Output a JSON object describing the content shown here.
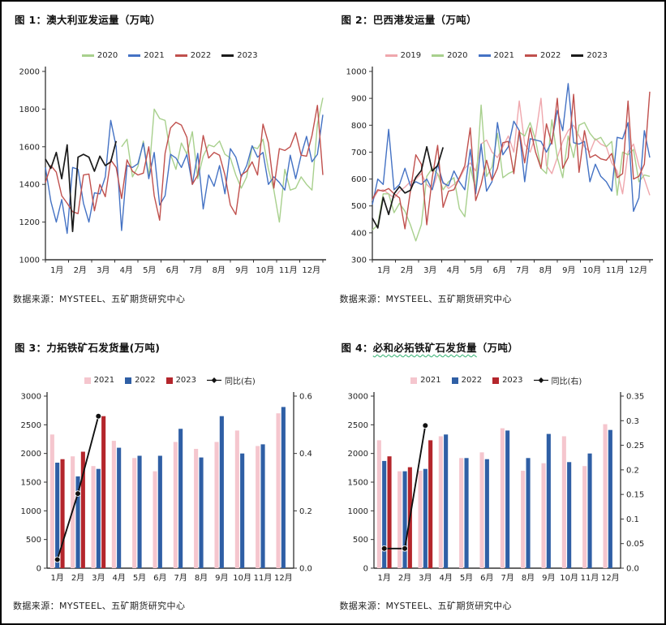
{
  "months": [
    "1月",
    "2月",
    "3月",
    "4月",
    "5月",
    "6月",
    "7月",
    "8月",
    "9月",
    "10月",
    "11月",
    "12月"
  ],
  "chart_data": [
    {
      "id": "fig1",
      "type": "line",
      "title": "图 1：澳大利亚发运量（万吨）",
      "title_prefix": "图 1：澳大利亚发运量（万吨）",
      "title_main": "",
      "title_suffix": "",
      "source": "数据来源：MYSTEEL、五矿期货研究中心",
      "ylabel": "万吨",
      "ylim": [
        1000,
        2000
      ],
      "ytick_labels": [
        "1000",
        "1200",
        "1400",
        "1600",
        "1800",
        "2000"
      ],
      "n_points": 52,
      "grid": false,
      "legend_position": "top",
      "series": [
        {
          "name": "2020",
          "color": "#a8d08d",
          "start": 14,
          "values": [
            1600,
            1640,
            1440,
            1495,
            1630,
            1440,
            1800,
            1750,
            1740,
            1560,
            1480,
            1620,
            1560,
            1680,
            1430,
            1550,
            1610,
            1600,
            1630,
            1560,
            1540,
            1450,
            1380,
            1440,
            1600,
            1590,
            1640,
            1480,
            1370,
            1200,
            1480,
            1370,
            1380,
            1440,
            1400,
            1370,
            1720,
            1860
          ]
        },
        {
          "name": "2021",
          "color": "#4472c4",
          "start": 0,
          "values": [
            1490,
            1310,
            1200,
            1320,
            1140,
            1490,
            1480,
            1300,
            1200,
            1355,
            1350,
            1440,
            1740,
            1600,
            1155,
            1500,
            1490,
            1510,
            1620,
            1430,
            1570,
            1290,
            1340,
            1560,
            1540,
            1490,
            1560,
            1400,
            1565,
            1270,
            1450,
            1390,
            1500,
            1350,
            1590,
            1545,
            1440,
            1500,
            1605,
            1545,
            1570,
            1400,
            1440,
            1410,
            1370,
            1555,
            1430,
            1555,
            1655,
            1520,
            1560,
            1770
          ]
        },
        {
          "name": "2022",
          "color": "#c0504d",
          "start": 0,
          "values": [
            1410,
            1500,
            1465,
            1340,
            1300,
            1255,
            1245,
            1450,
            1455,
            1260,
            1400,
            1335,
            1530,
            1490,
            1325,
            1530,
            1470,
            1450,
            1460,
            1600,
            1340,
            1210,
            1565,
            1700,
            1730,
            1715,
            1650,
            1400,
            1450,
            1660,
            1540,
            1570,
            1555,
            1450,
            1290,
            1240,
            1450,
            1470,
            1520,
            1450,
            1720,
            1620,
            1380,
            1590,
            1580,
            1600,
            1675,
            1555,
            1550,
            1660,
            1820,
            1450
          ]
        },
        {
          "name": "2023",
          "color": "#1a1a1a",
          "start": 0,
          "values": [
            1535,
            1485,
            1570,
            1430,
            1610,
            1150,
            1545,
            1560,
            1545,
            1470,
            1550,
            1500,
            1520,
            1630
          ]
        }
      ]
    },
    {
      "id": "fig2",
      "type": "line",
      "title": "图 2：巴西港发运量（万吨）",
      "title_prefix": "图 2：巴西港发运量（万吨）",
      "title_main": "",
      "title_suffix": "",
      "source": "数据来源：MYSTEEL、五矿期货研究中心",
      "ylabel": "万吨",
      "ylim": [
        300,
        1000
      ],
      "ytick_labels": [
        "300",
        "400",
        "500",
        "600",
        "700",
        "800",
        "900",
        "1000"
      ],
      "n_points": 52,
      "grid": false,
      "legend_position": "top",
      "series": [
        {
          "name": "2019",
          "color": "#efa7ad",
          "start": 0,
          "values": [
            520,
            555,
            560,
            545,
            530,
            555,
            570,
            590,
            600,
            620,
            580,
            560,
            620,
            590,
            565,
            580,
            600,
            640,
            660,
            630,
            730,
            745,
            700,
            680,
            720,
            760,
            700,
            890,
            730,
            700,
            760,
            900,
            650,
            620,
            680,
            740,
            780,
            800,
            760,
            720,
            700,
            750,
            730,
            720,
            660,
            630,
            545,
            700,
            730,
            650,
            600,
            540
          ]
        },
        {
          "name": "2020",
          "color": "#a8d08d",
          "start": 0,
          "values": [
            410,
            430,
            545,
            545,
            475,
            510,
            480,
            430,
            370,
            430,
            610,
            640,
            620,
            560,
            590,
            605,
            490,
            460,
            645,
            560,
            875,
            610,
            645,
            770,
            605,
            620,
            630,
            775,
            760,
            810,
            745,
            640,
            620,
            820,
            680,
            605,
            760,
            680,
            800,
            810,
            770,
            745,
            755,
            720,
            740,
            540,
            700,
            690,
            710,
            590,
            615,
            610
          ]
        },
        {
          "name": "2021",
          "color": "#4472c4",
          "start": 0,
          "values": [
            505,
            600,
            580,
            785,
            560,
            580,
            640,
            575,
            590,
            580,
            600,
            560,
            655,
            585,
            575,
            630,
            590,
            560,
            710,
            545,
            730,
            555,
            590,
            810,
            690,
            720,
            815,
            780,
            590,
            750,
            745,
            740,
            700,
            740,
            855,
            780,
            955,
            735,
            730,
            740,
            590,
            655,
            610,
            590,
            555,
            755,
            750,
            810,
            480,
            530,
            780,
            680
          ]
        },
        {
          "name": "2022",
          "color": "#c0504d",
          "start": 0,
          "values": [
            525,
            560,
            555,
            565,
            545,
            530,
            415,
            555,
            690,
            655,
            430,
            605,
            725,
            495,
            555,
            560,
            605,
            650,
            790,
            520,
            580,
            670,
            595,
            640,
            735,
            740,
            620,
            780,
            660,
            790,
            700,
            640,
            805,
            730,
            900,
            640,
            680,
            915,
            625,
            780,
            680,
            690,
            675,
            670,
            695,
            605,
            620,
            890,
            600,
            610,
            655,
            925
          ]
        },
        {
          "name": "2023",
          "color": "#1a1a1a",
          "start": 0,
          "values": [
            455,
            418,
            532,
            468,
            545,
            572,
            548,
            558,
            606,
            632,
            720,
            630,
            650,
            718
          ]
        }
      ]
    },
    {
      "id": "fig3",
      "type": "bar-line",
      "title": "图 3：力拓铁矿石发货量(万吨)",
      "title_prefix": "图 3：力拓铁矿石发货量(万吨)",
      "title_main": "",
      "title_suffix": "",
      "source": "数据来源：MYSTEEL、五矿期货研究中心",
      "ylim": [
        0,
        3000
      ],
      "ytick_labels": [
        "0",
        "500",
        "1000",
        "1500",
        "2000",
        "2500",
        "3000"
      ],
      "y2lim": [
        0,
        0.6
      ],
      "y2tick_labels": [
        "0.0",
        "0.2",
        "0.4",
        "0.6"
      ],
      "grid": false,
      "legend_position": "top",
      "bar_series": [
        {
          "name": "2021",
          "color": "#f5c6ce",
          "values": [
            2330,
            1950,
            1780,
            2220,
            1920,
            1690,
            2200,
            2080,
            2200,
            2400,
            2130,
            2700
          ]
        },
        {
          "name": "2022",
          "color": "#2f5fa5",
          "values": [
            1840,
            1600,
            1730,
            2100,
            1960,
            1960,
            2430,
            1930,
            2650,
            2000,
            2160,
            2810
          ]
        },
        {
          "name": "2023",
          "color": "#b4262c",
          "values": [
            1900,
            2030,
            2650,
            null,
            null,
            null,
            null,
            null,
            null,
            null,
            null,
            null
          ]
        }
      ],
      "line_series": {
        "name": "同比(右)",
        "color": "#111111",
        "axis": "right",
        "values": [
          0.03,
          0.26,
          0.53,
          null,
          null,
          null,
          null,
          null,
          null,
          null,
          null,
          null
        ]
      }
    },
    {
      "id": "fig4",
      "type": "bar-line",
      "title": "图 4：必和必拓铁矿石发货量（万吨）",
      "title_prefix": "图 4：",
      "title_main": "必和必拓铁矿石发货量",
      "title_suffix": "（万吨）",
      "source": "数据来源：MYSTEEL、五矿期货研究中心",
      "ylim": [
        0,
        3000
      ],
      "ytick_labels": [
        "0",
        "500",
        "1000",
        "1500",
        "2000",
        "2500",
        "3000"
      ],
      "y2lim": [
        0,
        0.35
      ],
      "y2tick_labels": [
        "0.0",
        "0.05",
        "0.1",
        "0.15",
        "0.2",
        "0.25",
        "0.3",
        "0.35"
      ],
      "grid": false,
      "legend_position": "top",
      "bar_series": [
        {
          "name": "2021",
          "color": "#f5c6ce",
          "values": [
            2230,
            1690,
            1700,
            2300,
            1920,
            2020,
            2440,
            1700,
            1830,
            2300,
            1780,
            2510
          ]
        },
        {
          "name": "2022",
          "color": "#2f5fa5",
          "values": [
            1870,
            1690,
            1730,
            2330,
            1920,
            1900,
            2400,
            1920,
            2340,
            1850,
            2000,
            2410
          ]
        },
        {
          "name": "2023",
          "color": "#b4262c",
          "values": [
            1950,
            1760,
            2230,
            null,
            null,
            null,
            null,
            null,
            null,
            null,
            null,
            null
          ]
        }
      ],
      "line_series": {
        "name": "同比(右)",
        "color": "#111111",
        "axis": "right",
        "values": [
          0.04,
          0.04,
          0.29,
          null,
          null,
          null,
          null,
          null,
          null,
          null,
          null,
          null
        ]
      }
    }
  ]
}
